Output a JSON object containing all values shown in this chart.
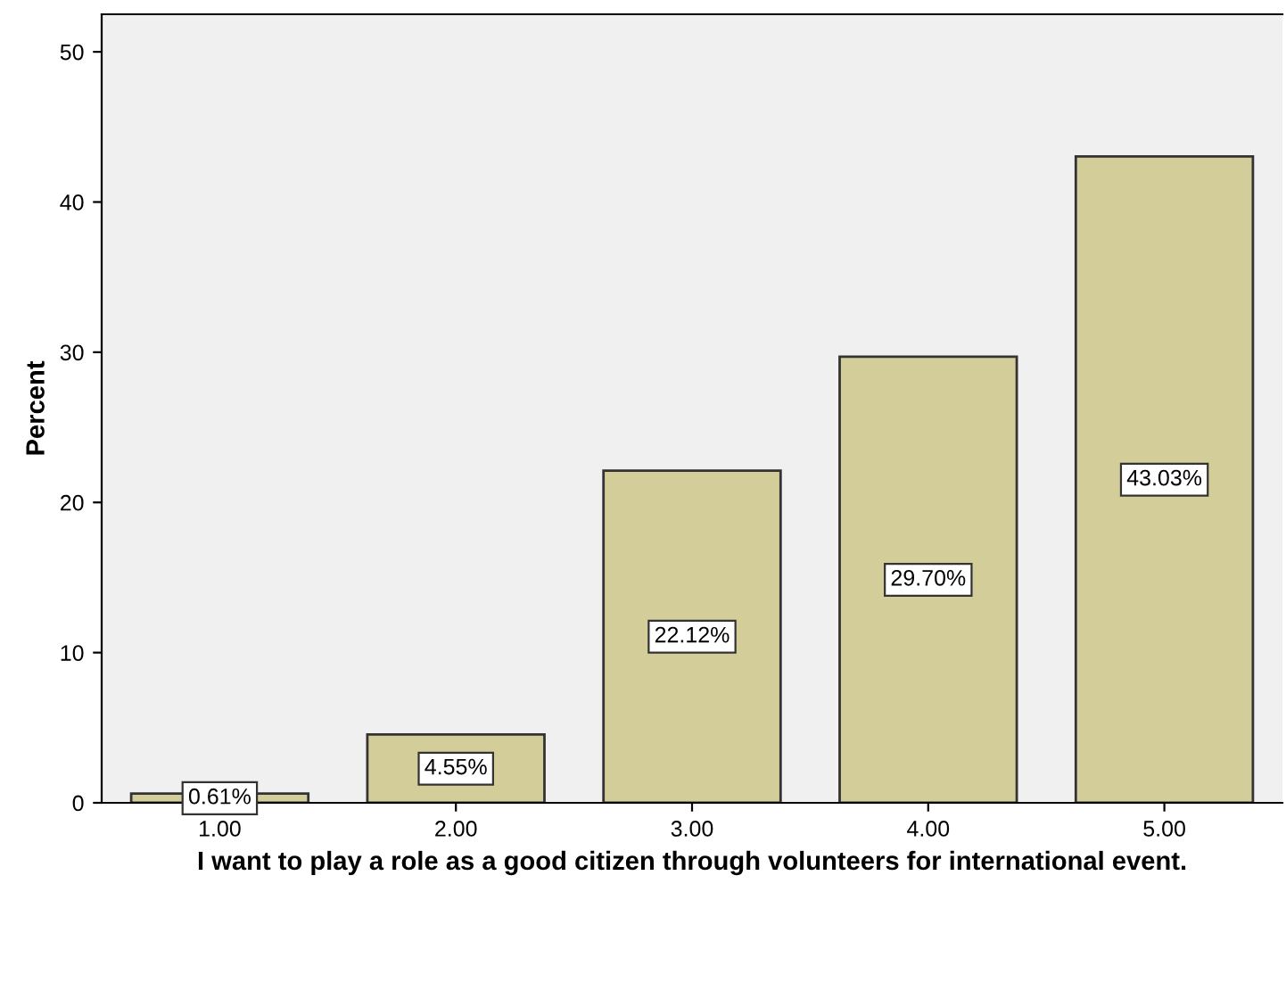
{
  "chart_data": {
    "type": "bar",
    "xlabel": "I want to play a role as a good citizen through volunteers for international event.",
    "ylabel": "Percent",
    "categories": [
      "1.00",
      "2.00",
      "3.00",
      "4.00",
      "5.00"
    ],
    "values": [
      0.61,
      4.55,
      22.12,
      29.7,
      43.03
    ],
    "value_labels": [
      "0.61%",
      "4.55%",
      "22.12%",
      "29.70%",
      "43.03%"
    ],
    "color": "#d3ce99",
    "ylim": [
      0,
      52.5
    ],
    "yticks": [
      0,
      10,
      20,
      30,
      40,
      50
    ],
    "grid": false,
    "legend": false
  }
}
